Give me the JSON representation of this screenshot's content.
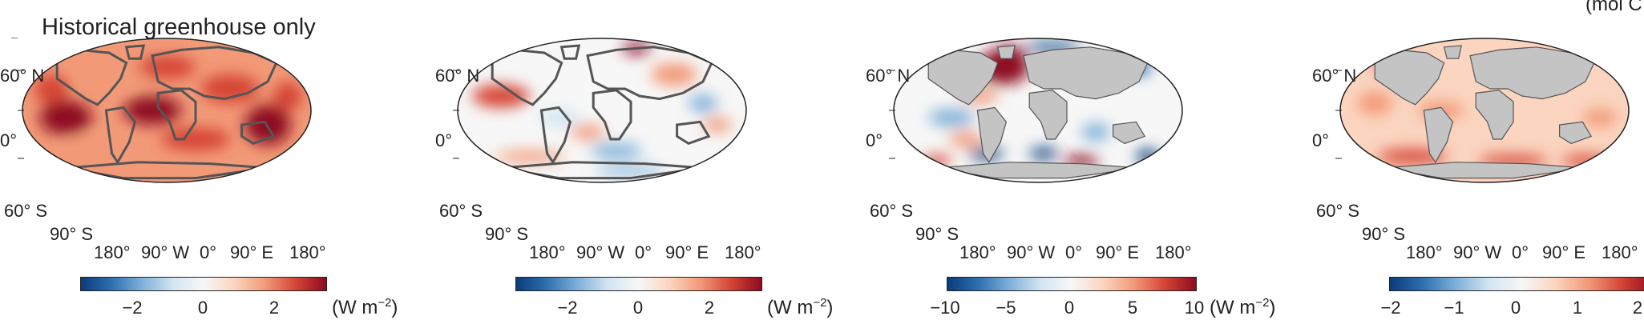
{
  "title": "Historical greenhouse only",
  "corner_unit": "(mol C",
  "colors": {
    "land_grey": "#c4c4c4",
    "coast": "#555555",
    "diverging": [
      "#0b3c7a",
      "#2f6fb0",
      "#7fb0d8",
      "#d3e5f2",
      "#f7f7f7",
      "#fbd5c0",
      "#f29a78",
      "#d54535",
      "#8e0b20"
    ]
  },
  "lat_labels": [
    "60° N",
    "0°",
    "60° S",
    "90° S"
  ],
  "lon_labels": [
    "180°",
    "90° W",
    "0°",
    "90° E",
    "180°"
  ],
  "chart_data": [
    {
      "type": "heatmap",
      "projection": "robinson",
      "land_masked": false,
      "colorbar": {
        "range": [
          -3.5,
          3.5
        ],
        "ticks": [
          "−2",
          "0",
          "2"
        ],
        "unit": "(W m",
        "unit_exp": "−2",
        "unit_close": ")"
      },
      "pattern": "warm"
    },
    {
      "type": "heatmap",
      "projection": "robinson",
      "land_masked": false,
      "colorbar": {
        "range": [
          -3.5,
          3.5
        ],
        "ticks": [
          "−2",
          "0",
          "2"
        ],
        "unit": "(W m",
        "unit_exp": "−2",
        "unit_close": ")"
      },
      "pattern": "mixed"
    },
    {
      "type": "heatmap",
      "projection": "robinson",
      "land_masked": true,
      "colorbar": {
        "range": [
          -10,
          10
        ],
        "ticks": [
          "−10",
          "−5",
          "0",
          "5",
          "10"
        ],
        "unit": "(W m",
        "unit_exp": "−2",
        "unit_close": ")"
      },
      "pattern": "ocean-strong"
    },
    {
      "type": "heatmap",
      "projection": "robinson",
      "land_masked": true,
      "colorbar": {
        "range": [
          -2,
          2.6
        ],
        "ticks": [
          "−2",
          "−1",
          "0",
          "1",
          "2"
        ],
        "unit": "",
        "unit_exp": "",
        "unit_close": ""
      },
      "pattern": "ocean-mild"
    }
  ]
}
